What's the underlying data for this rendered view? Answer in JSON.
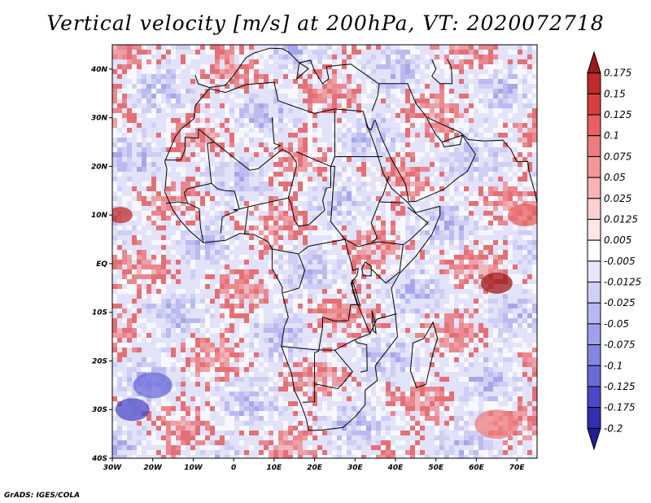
{
  "title": "Vertical velocity [m/s] at 200hPa, VT: 2020072718",
  "footer": "GrADS: IGES/COLA",
  "map": {
    "region": "Africa and surrounding oceans",
    "variable": "Vertical velocity",
    "units": "m/s",
    "level": "200hPa",
    "valid_time": "2020072718",
    "lon_range": [
      -30,
      75
    ],
    "lat_range": [
      -40,
      45
    ],
    "lon_ticks": [
      {
        "value": -30,
        "label": "30W"
      },
      {
        "value": -20,
        "label": "20W"
      },
      {
        "value": -10,
        "label": "10W"
      },
      {
        "value": 0,
        "label": "0"
      },
      {
        "value": 10,
        "label": "10E"
      },
      {
        "value": 20,
        "label": "20E"
      },
      {
        "value": 30,
        "label": "30E"
      },
      {
        "value": 40,
        "label": "40E"
      },
      {
        "value": 50,
        "label": "50E"
      },
      {
        "value": 60,
        "label": "60E"
      },
      {
        "value": 70,
        "label": "70E"
      }
    ],
    "lat_ticks": [
      {
        "value": 40,
        "label": "40N"
      },
      {
        "value": 30,
        "label": "30N"
      },
      {
        "value": 20,
        "label": "20N"
      },
      {
        "value": 10,
        "label": "10N"
      },
      {
        "value": 0,
        "label": "EQ"
      },
      {
        "value": -10,
        "label": "10S"
      },
      {
        "value": -20,
        "label": "20S"
      },
      {
        "value": -30,
        "label": "30S"
      },
      {
        "value": -40,
        "label": "40S"
      }
    ]
  },
  "colorbar": {
    "levels": [
      "0.175",
      "0.15",
      "0.125",
      "0.1",
      "0.075",
      "0.05",
      "0.025",
      "0.0125",
      "0.005",
      "-0.005",
      "-0.0125",
      "-0.025",
      "-0.05",
      "-0.075",
      "-0.1",
      "-0.125",
      "-0.175",
      "-0.2"
    ],
    "colors": [
      "#a01818",
      "#c02a2a",
      "#d84040",
      "#e86060",
      "#ee7c7c",
      "#f39898",
      "#f6b4b4",
      "#fad0d0",
      "#fde6e6",
      "#ffffff",
      "#e6e6fa",
      "#d0d0f6",
      "#b8b8f0",
      "#a0a0ea",
      "#8585e2",
      "#6a6ad8",
      "#4848c8",
      "#3030b0",
      "#1e1e96"
    ]
  }
}
